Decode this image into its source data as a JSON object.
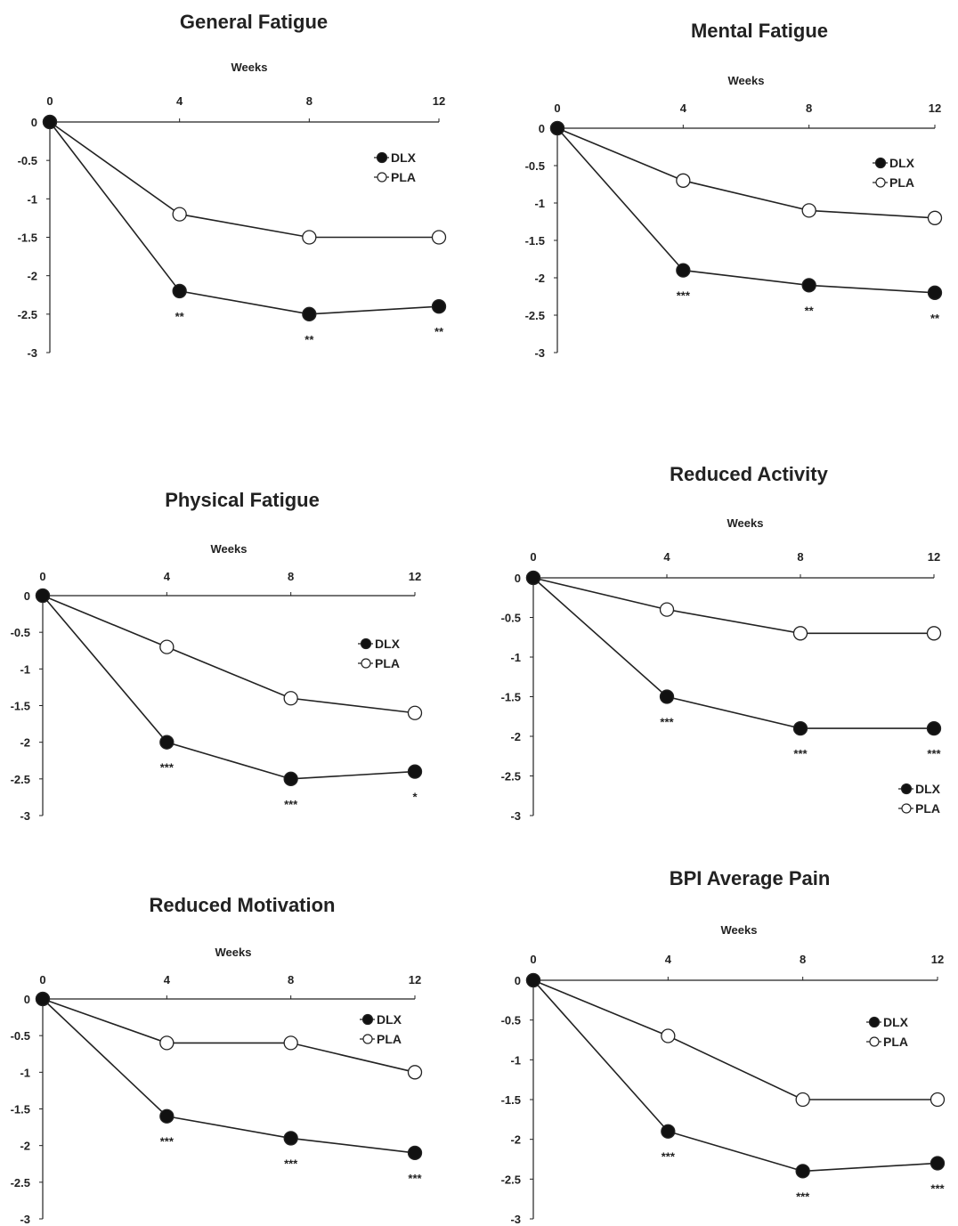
{
  "chart_data": [
    {
      "type": "line",
      "title": "General Fatigue",
      "xlabel": "Weeks",
      "ylabel": "",
      "x": [
        0,
        4,
        8,
        12
      ],
      "x_ticks": [
        "0",
        "4",
        "8",
        "12"
      ],
      "ylim": [
        -3,
        0
      ],
      "y_ticks": [
        "0",
        "-0.5",
        "-1",
        "-1.5",
        "-2",
        "-2.5",
        "-3"
      ],
      "legend_position": "top-right",
      "series": [
        {
          "name": "DLX",
          "values": [
            0,
            -2.2,
            -2.5,
            -2.4
          ],
          "significance": [
            "",
            "**",
            "**",
            "**"
          ]
        },
        {
          "name": "PLA",
          "values": [
            0,
            -1.2,
            -1.5,
            -1.5
          ]
        }
      ]
    },
    {
      "type": "line",
      "title": "Mental Fatigue",
      "xlabel": "Weeks",
      "ylabel": "",
      "x": [
        0,
        4,
        8,
        12
      ],
      "x_ticks": [
        "0",
        "4",
        "8",
        "12"
      ],
      "ylim": [
        -3,
        0
      ],
      "y_ticks": [
        "0",
        "-0.5",
        "-1",
        "-1.5",
        "-2",
        "-2.5",
        "-3"
      ],
      "legend_position": "top-right",
      "series": [
        {
          "name": "DLX",
          "values": [
            0,
            -1.9,
            -2.1,
            -2.2
          ],
          "significance": [
            "",
            "***",
            "**",
            "**"
          ]
        },
        {
          "name": "PLA",
          "values": [
            0,
            -0.7,
            -1.1,
            -1.2
          ]
        }
      ]
    },
    {
      "type": "line",
      "title": "Physical Fatigue",
      "xlabel": "Weeks",
      "ylabel": "",
      "x": [
        0,
        4,
        8,
        12
      ],
      "x_ticks": [
        "0",
        "4",
        "8",
        "12"
      ],
      "ylim": [
        -3,
        0
      ],
      "y_ticks": [
        "0",
        "-0.5",
        "-1",
        "-1.5",
        "-2",
        "-2.5",
        "-3"
      ],
      "legend_position": "top-right",
      "series": [
        {
          "name": "DLX",
          "values": [
            0,
            -2.0,
            -2.5,
            -2.4
          ],
          "significance": [
            "",
            "***",
            "***",
            "*"
          ]
        },
        {
          "name": "PLA",
          "values": [
            0,
            -0.7,
            -1.4,
            -1.6
          ]
        }
      ]
    },
    {
      "type": "line",
      "title": "Reduced Activity",
      "xlabel": "Weeks",
      "ylabel": "",
      "x": [
        0,
        4,
        8,
        12
      ],
      "x_ticks": [
        "0",
        "4",
        "8",
        "12"
      ],
      "ylim": [
        -3,
        0
      ],
      "y_ticks": [
        "0",
        "-0.5",
        "-1",
        "-1.5",
        "-2",
        "-2.5",
        "-3"
      ],
      "legend_position": "bottom-right",
      "series": [
        {
          "name": "DLX",
          "values": [
            0,
            -1.5,
            -1.9,
            -1.9
          ],
          "significance": [
            "",
            "***",
            "***",
            "***"
          ]
        },
        {
          "name": "PLA",
          "values": [
            0,
            -0.4,
            -0.7,
            -0.7
          ]
        }
      ]
    },
    {
      "type": "line",
      "title": "Reduced Motivation",
      "xlabel": "Weeks",
      "ylabel": "",
      "x": [
        0,
        4,
        8,
        12
      ],
      "x_ticks": [
        "0",
        "4",
        "8",
        "12"
      ],
      "ylim": [
        -3,
        0
      ],
      "y_ticks": [
        "0",
        "-0.5",
        "-1",
        "-1.5",
        "-2",
        "-2.5",
        "-3"
      ],
      "legend_position": "top-right",
      "series": [
        {
          "name": "DLX",
          "values": [
            0,
            -1.6,
            -1.9,
            -2.1
          ],
          "significance": [
            "",
            "***",
            "***",
            "***"
          ]
        },
        {
          "name": "PLA",
          "values": [
            0,
            -0.6,
            -0.6,
            -1.0
          ]
        }
      ]
    },
    {
      "type": "line",
      "title": "BPI Average Pain",
      "xlabel": "Weeks",
      "ylabel": "",
      "x": [
        0,
        4,
        8,
        12
      ],
      "x_ticks": [
        "0",
        "4",
        "8",
        "12"
      ],
      "ylim": [
        -3,
        0
      ],
      "y_ticks": [
        "0",
        "-0.5",
        "-1",
        "-1.5",
        "-2",
        "-2.5",
        "-3"
      ],
      "legend_position": "top-right",
      "series": [
        {
          "name": "DLX",
          "values": [
            0,
            -1.9,
            -2.4,
            -2.3
          ],
          "significance": [
            "",
            "***",
            "***",
            "***"
          ]
        },
        {
          "name": "PLA",
          "values": [
            0,
            -0.7,
            -1.5,
            -1.5
          ]
        }
      ]
    }
  ],
  "colors": {
    "dlx_marker": "#111111",
    "pla_marker": "#ffffff",
    "line": "#222222"
  }
}
